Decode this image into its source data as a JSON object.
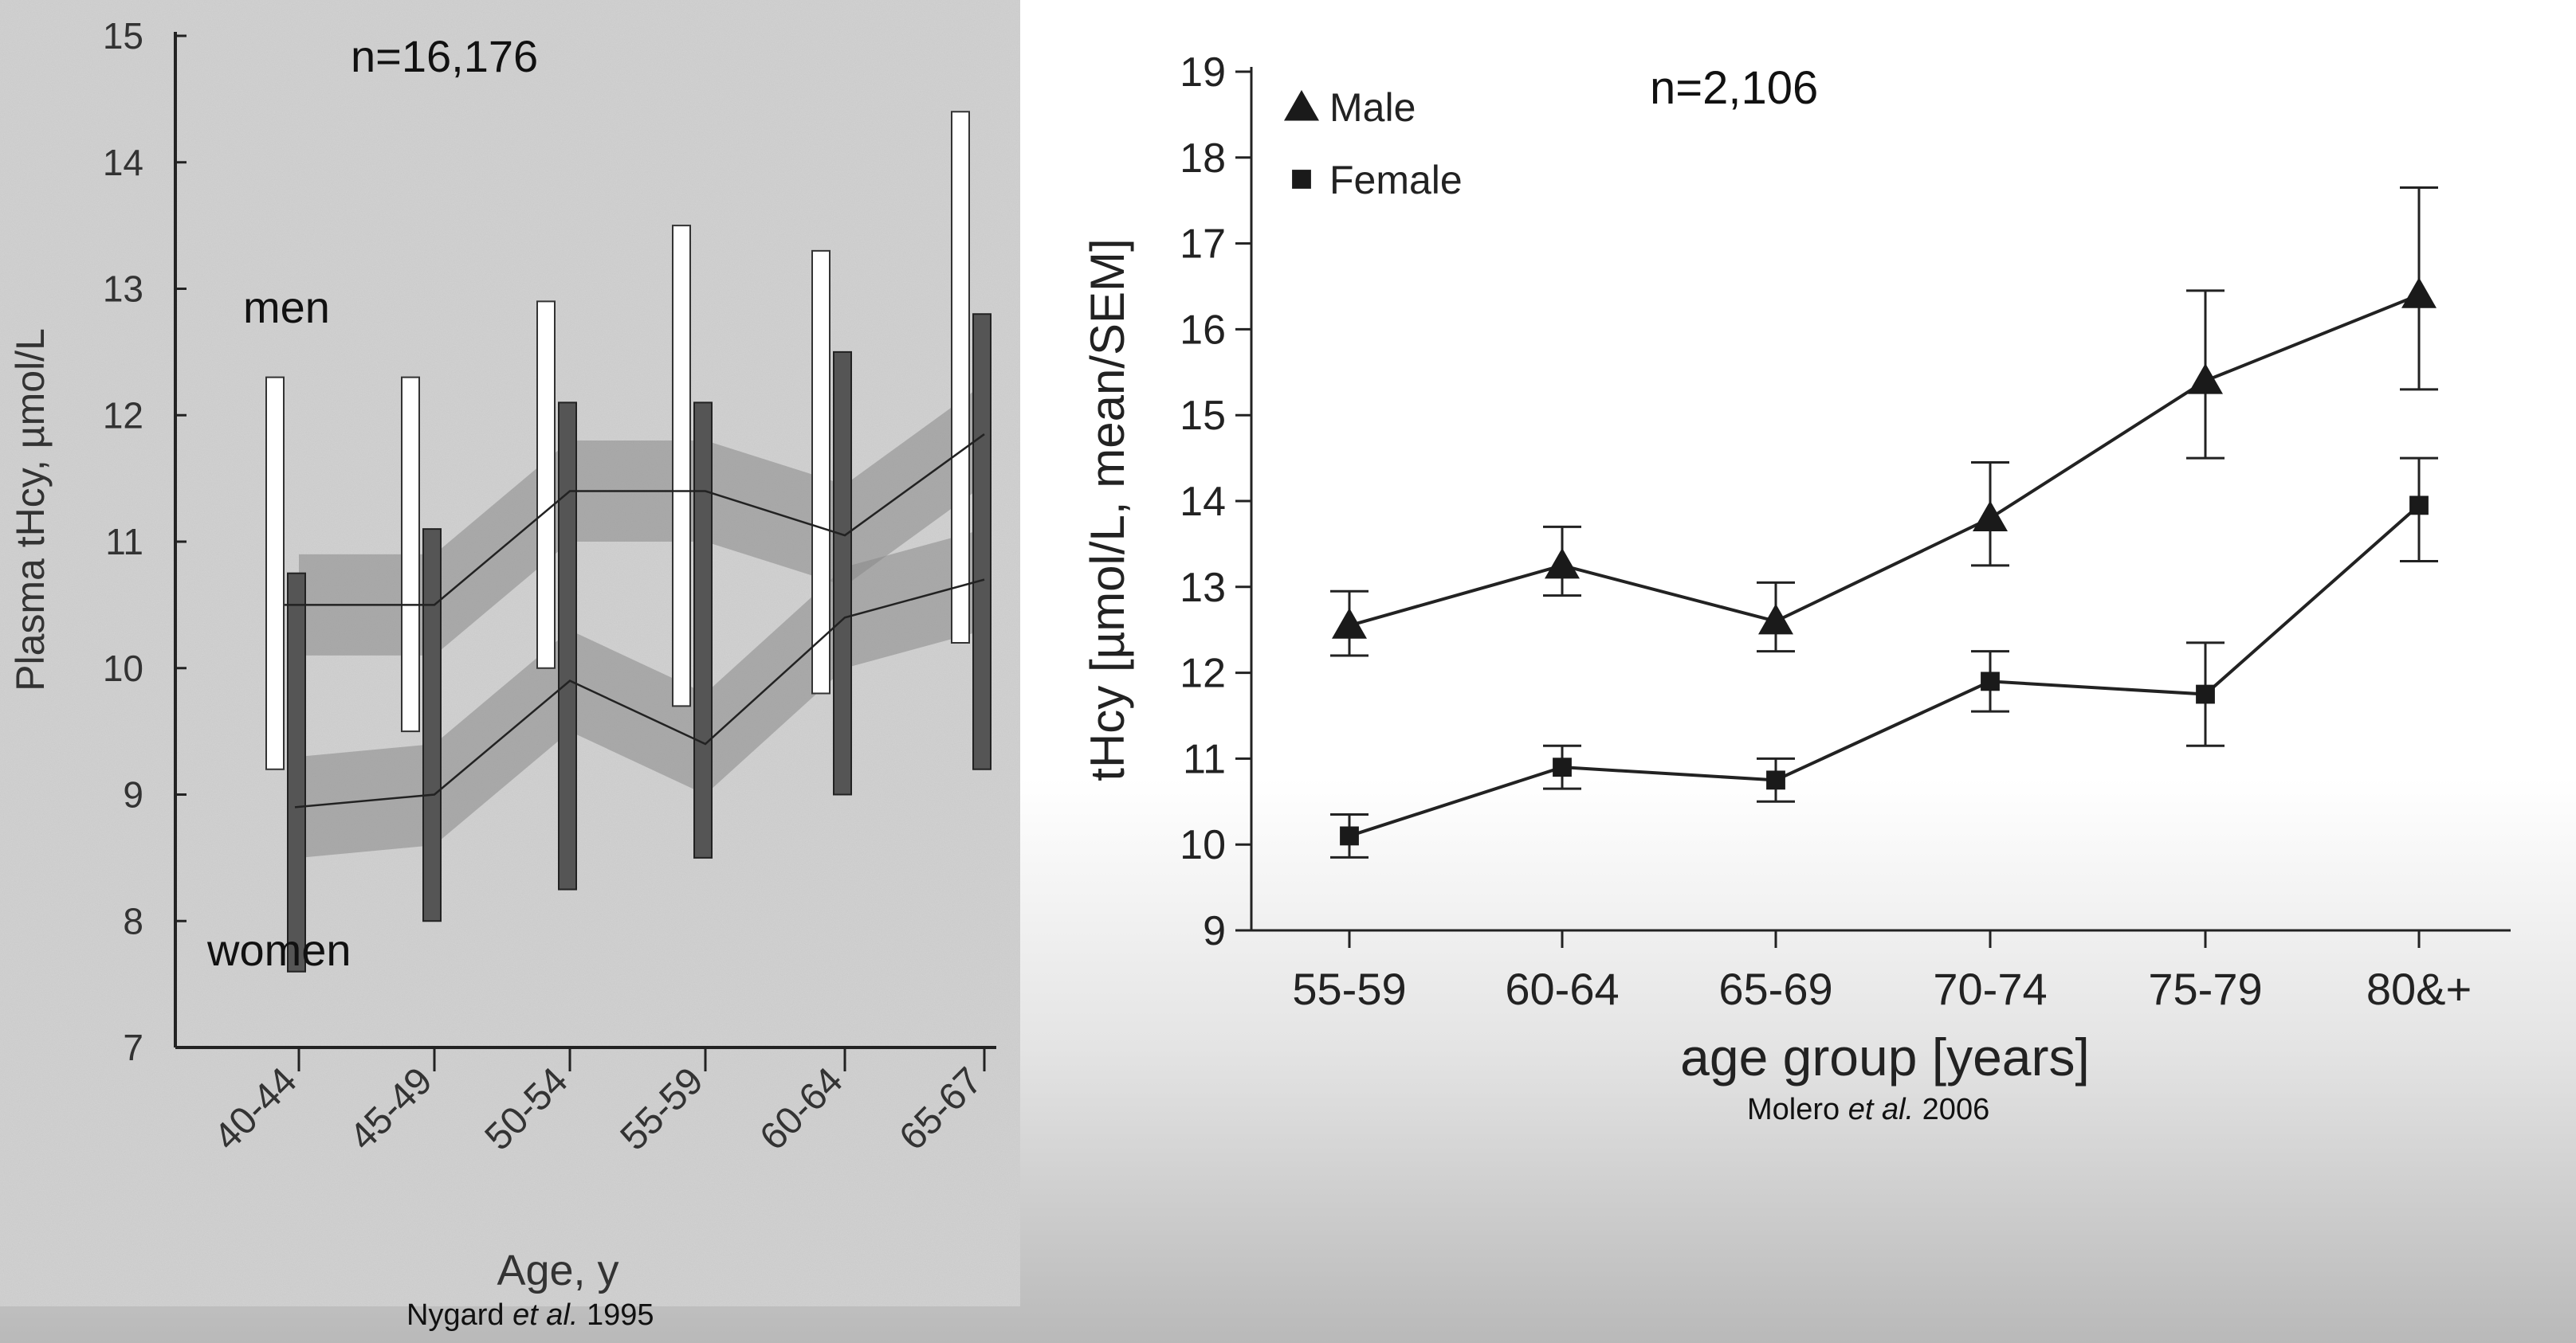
{
  "chart_data": [
    {
      "type": "bar",
      "annotation": "n=16,176",
      "xlabel": "Age, y",
      "ylabel": "Plasma tHcy, µmol/L",
      "categories": [
        "40-44",
        "45-49",
        "50-54",
        "55-59",
        "60-64",
        "65-67"
      ],
      "ylim": [
        7,
        15
      ],
      "yticks": [
        7,
        8,
        9,
        10,
        11,
        12,
        13,
        14,
        15
      ],
      "grid": false,
      "series": [
        {
          "name": "men",
          "color": "#ffffff",
          "low": [
            9.2,
            9.5,
            10.0,
            9.7,
            9.8,
            10.2
          ],
          "high": [
            12.3,
            12.3,
            12.9,
            13.5,
            13.3,
            14.4
          ],
          "mean": [
            10.5,
            10.5,
            11.4,
            11.4,
            11.05,
            11.85
          ]
        },
        {
          "name": "women",
          "color": "#555555",
          "low": [
            7.6,
            8.0,
            8.25,
            8.5,
            9.0,
            9.2
          ],
          "high": [
            10.75,
            11.1,
            12.1,
            12.1,
            12.5,
            12.8
          ],
          "mean": [
            8.9,
            9.0,
            9.9,
            9.4,
            10.4,
            10.7
          ]
        }
      ],
      "source": {
        "author": "Nygard",
        "etal": "et al.",
        "year": "1995"
      }
    },
    {
      "type": "line",
      "annotation": "n=2,106",
      "xlabel": "age group [years]",
      "ylabel": "tHcy [µmol/L, mean/SEM]",
      "categories": [
        "55-59",
        "60-64",
        "65-69",
        "70-74",
        "75-79",
        "80&+"
      ],
      "ylim": [
        9,
        19
      ],
      "yticks": [
        9,
        10,
        11,
        12,
        13,
        14,
        15,
        16,
        17,
        18,
        19
      ],
      "grid": false,
      "legend_position": "top-left",
      "series": [
        {
          "name": "Male",
          "marker": "triangle",
          "values": [
            12.55,
            13.25,
            12.6,
            13.8,
            15.4,
            16.4
          ],
          "error_low": [
            12.2,
            12.9,
            12.25,
            13.25,
            14.5,
            15.3
          ],
          "error_high": [
            12.95,
            13.7,
            13.05,
            14.45,
            16.45,
            17.65
          ]
        },
        {
          "name": "Female",
          "marker": "square",
          "values": [
            10.1,
            10.9,
            10.75,
            11.9,
            11.75,
            13.95
          ],
          "error_low": [
            9.85,
            10.65,
            10.5,
            11.55,
            11.15,
            13.3
          ],
          "error_high": [
            10.35,
            11.15,
            11.0,
            12.25,
            12.35,
            14.5
          ]
        }
      ],
      "source": {
        "author": "Molero",
        "etal": "et al.",
        "year": "2006"
      }
    }
  ]
}
